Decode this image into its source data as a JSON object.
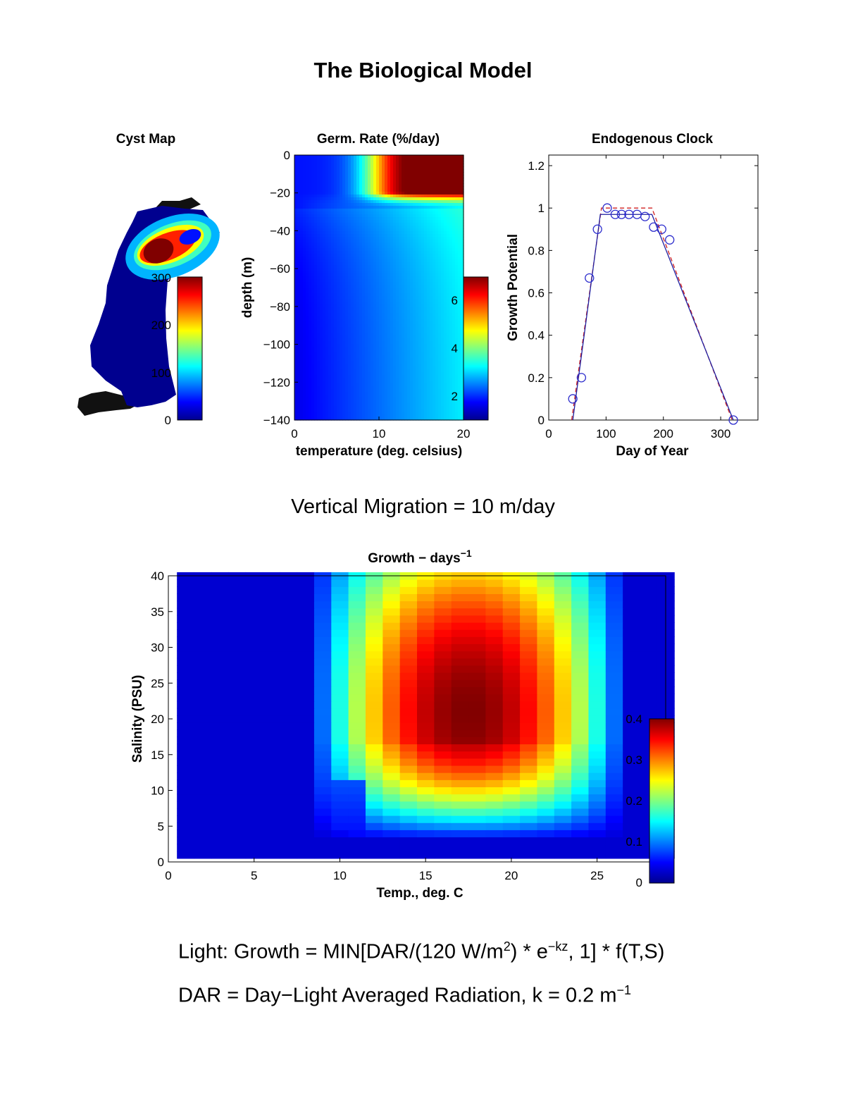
{
  "page": {
    "title": "The Biological Model",
    "subtitle": "Vertical Migration = 10 m/day",
    "equation1": {
      "a": "Light: Growth = MIN[DAR/(120 W/m",
      "sup1": "2",
      "b": ") * e",
      "sup2": "−kz",
      "c": ", 1] * f(T,S)"
    },
    "equation2": {
      "a": "DAR = Day−Light Averaged Radiation, k = 0.2 m",
      "sup": "−1"
    }
  },
  "chart_data": [
    {
      "id": "cyst-map",
      "type": "heatmap",
      "title": "Cyst Map",
      "colorbar": {
        "ticks": [
          "0",
          "100",
          "200",
          "300"
        ],
        "range": [
          0,
          300
        ]
      }
    },
    {
      "id": "germ-rate",
      "type": "heatmap",
      "title": "Germ. Rate (%/day)",
      "xlabel": "temperature (deg. celsius)",
      "ylabel": "depth (m)",
      "xlim": [
        0,
        20
      ],
      "ylim": [
        -140,
        0
      ],
      "xticks": [
        "0",
        "10",
        "20"
      ],
      "yticks": [
        "0",
        "−20",
        "−40",
        "−60",
        "−80",
        "−100",
        "−120",
        "−140"
      ],
      "colorbar": {
        "ticks": [
          "2",
          "4",
          "6"
        ],
        "range": [
          1,
          7
        ]
      }
    },
    {
      "id": "endogenous-clock",
      "type": "scatter",
      "title": "Endogenous Clock",
      "xlabel": "Day of Year",
      "ylabel": "Growth Potential",
      "xlim": [
        0,
        365
      ],
      "ylim": [
        0,
        1.25
      ],
      "xticks": [
        "0",
        "100",
        "200",
        "300"
      ],
      "yticks": [
        "0",
        "0.2",
        "0.4",
        "0.6",
        "0.8",
        "1",
        "1.2"
      ],
      "series": [
        {
          "type": "scatter",
          "x": [
            42,
            57,
            71,
            85,
            102,
            116,
            127,
            140,
            154,
            168,
            183,
            197,
            211,
            322
          ],
          "y": [
            0.1,
            0.2,
            0.67,
            0.9,
            1.0,
            0.97,
            0.97,
            0.97,
            0.97,
            0.96,
            0.91,
            0.9,
            0.85,
            0.0
          ]
        },
        {
          "type": "line",
          "style": "solid",
          "x": [
            42,
            90,
            180,
            322
          ],
          "y": [
            0,
            0.97,
            0.97,
            0
          ]
        },
        {
          "type": "line",
          "style": "dashed",
          "x": [
            40,
            92,
            180,
            320
          ],
          "y": [
            0,
            1.0,
            1.0,
            0
          ]
        }
      ],
      "colors": {
        "scatter": "#2b2bcc",
        "solid": "#1f1fa0",
        "dashed": "#d02020"
      }
    },
    {
      "id": "growth",
      "type": "heatmap",
      "title": "Growth − days",
      "title_sup": "−1",
      "xlabel": "Temp., deg. C",
      "ylabel": "Salinity (PSU)",
      "xlim": [
        0,
        29
      ],
      "ylim": [
        0,
        40
      ],
      "xticks": [
        "0",
        "5",
        "10",
        "15",
        "20",
        "25"
      ],
      "yticks": [
        "0",
        "5",
        "10",
        "15",
        "20",
        "25",
        "30",
        "35",
        "40"
      ],
      "grid": false,
      "peak": {
        "temperature": 17.5,
        "salinity": 21,
        "value": 0.4
      },
      "colorbar": {
        "ticks": [
          "0",
          "0.1",
          "0.2",
          "0.3",
          "0.4"
        ],
        "range": [
          0,
          0.4
        ]
      }
    }
  ]
}
